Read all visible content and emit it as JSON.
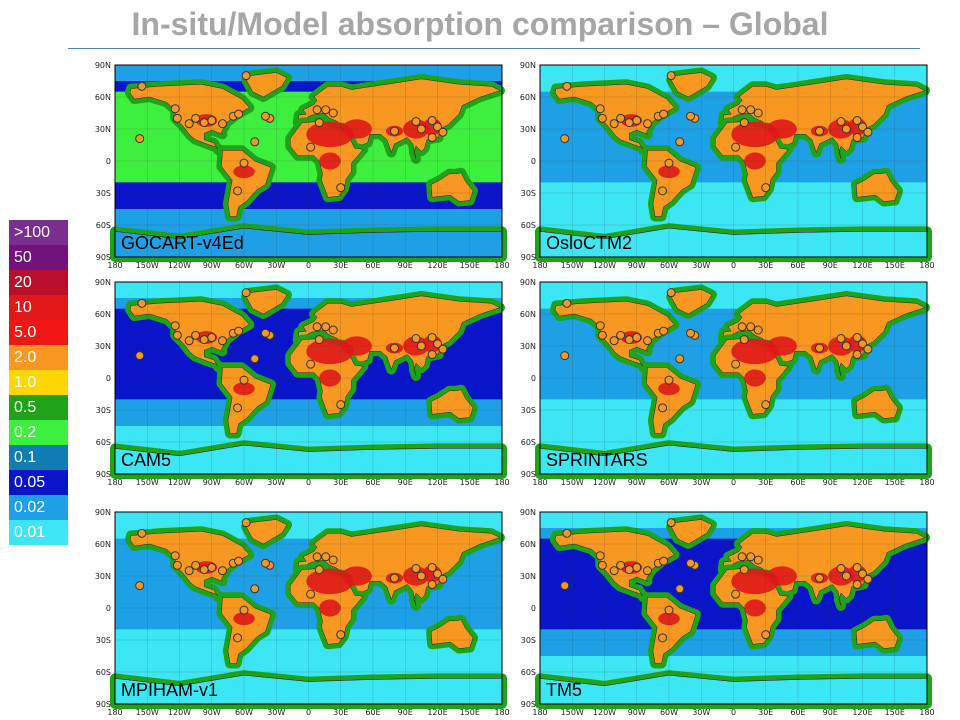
{
  "page": {
    "title": "In-situ/Model absorption comparison – Global"
  },
  "legend": {
    "items": [
      {
        "label": ">100",
        "color": "#7a2f8f"
      },
      {
        "label": "50",
        "color": "#73127a"
      },
      {
        "label": "20",
        "color": "#b8102c"
      },
      {
        "label": "10",
        "color": "#e01818"
      },
      {
        "label": "5.0",
        "color": "#f01616"
      },
      {
        "label": "2.0",
        "color": "#f89820"
      },
      {
        "label": "1.0",
        "color": "#ffd700"
      },
      {
        "label": "0.5",
        "color": "#1fa319"
      },
      {
        "label": "0.2",
        "color": "#3ef03e"
      },
      {
        "label": "0.1",
        "color": "#0f7db4"
      },
      {
        "label": "0.05",
        "color": "#0a14c8"
      },
      {
        "label": "0.02",
        "color": "#1ea0e6"
      },
      {
        "label": "0.01",
        "color": "#3ce6f5"
      }
    ]
  },
  "axes": {
    "lat_ticks": [
      "90N",
      "60N",
      "30N",
      "0",
      "30S",
      "60S",
      "90S"
    ],
    "lon_ticks": [
      "180",
      "150W",
      "120W",
      "90W",
      "60W",
      "30W",
      "0",
      "30E",
      "60E",
      "90E",
      "120E",
      "150E",
      "180"
    ]
  },
  "panels": [
    {
      "model": "GOCART-v4Ed",
      "ocean": "#0a14c8",
      "ocean_mid": "#3ef03e",
      "high_lat": "#1ea0e6"
    },
    {
      "model": "OsloCTM2",
      "ocean": "#3ce6f5",
      "ocean_mid": "#1ea0e6",
      "high_lat": "#3ce6f5"
    },
    {
      "model": "CAM5",
      "ocean": "#1ea0e6",
      "ocean_mid": "#0a14c8",
      "high_lat": "#3ce6f5"
    },
    {
      "model": "SPRINTARS",
      "ocean": "#3ce6f5",
      "ocean_mid": "#1ea0e6",
      "high_lat": "#3ce6f5"
    },
    {
      "model": "MPIHAM-v1",
      "ocean": "#3ce6f5",
      "ocean_mid": "#1ea0e6",
      "high_lat": "#3ce6f5"
    },
    {
      "model": "TM5",
      "ocean": "#1ea0e6",
      "ocean_mid": "#0a14c8",
      "high_lat": "#3ce6f5"
    }
  ],
  "stations": [
    [
      -155,
      70
    ],
    [
      -124,
      49
    ],
    [
      -122,
      40
    ],
    [
      -111,
      35
    ],
    [
      -105,
      40
    ],
    [
      -97,
      36
    ],
    [
      -90,
      38
    ],
    [
      -80,
      35
    ],
    [
      -70,
      42
    ],
    [
      -65,
      44
    ],
    [
      -157,
      21
    ],
    [
      -60,
      -2
    ],
    [
      -66,
      -28
    ],
    [
      -58,
      80
    ],
    [
      -36,
      40
    ],
    [
      8,
      48
    ],
    [
      16,
      48
    ],
    [
      23,
      45
    ],
    [
      10,
      36
    ],
    [
      2,
      13
    ],
    [
      30,
      -25
    ],
    [
      80,
      28
    ],
    [
      100,
      37
    ],
    [
      105,
      30
    ],
    [
      115,
      38
    ],
    [
      120,
      32
    ],
    [
      125,
      27
    ],
    [
      115,
      22
    ],
    [
      -40,
      42
    ],
    [
      -50,
      18
    ]
  ]
}
